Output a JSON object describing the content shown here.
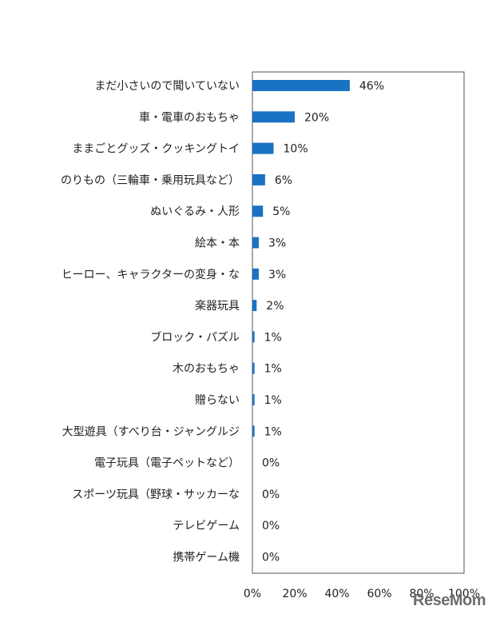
{
  "chart_data": {
    "type": "bar",
    "orientation": "horizontal",
    "categories": [
      "まだ小さいので聞いていない",
      "車・電車のおもちゃ",
      "ままごとグッズ・クッキングトイ",
      "のりもの（三輪車・乗用玩具など）",
      "ぬいぐるみ・人形",
      "絵本・本",
      "ヒーロー、キャラクターの変身・な",
      "楽器玩具",
      "ブロック・パズル",
      "木のおもちゃ",
      "贈らない",
      "大型遊具（すべり台・ジャングルジ",
      "電子玩具（電子ペットなど）",
      "スポーツ玩具（野球・サッカーな",
      "テレビゲーム",
      "携帯ゲーム機"
    ],
    "values": [
      46,
      20,
      10,
      6,
      5,
      3,
      3,
      2,
      1,
      1,
      1,
      1,
      0,
      0,
      0,
      0
    ],
    "value_labels": [
      "46%",
      "20%",
      "10%",
      "6%",
      "5%",
      "3%",
      "3%",
      "2%",
      "1%",
      "1%",
      "1%",
      "1%",
      "0%",
      "0%",
      "0%",
      "0%"
    ],
    "xlim": [
      0,
      100
    ],
    "x_ticks": [
      "0%",
      "20%",
      "40%",
      "60%",
      "80%",
      "100%"
    ],
    "grid": false,
    "bar_color": "#1a72c4"
  },
  "watermark": "ReseMom"
}
